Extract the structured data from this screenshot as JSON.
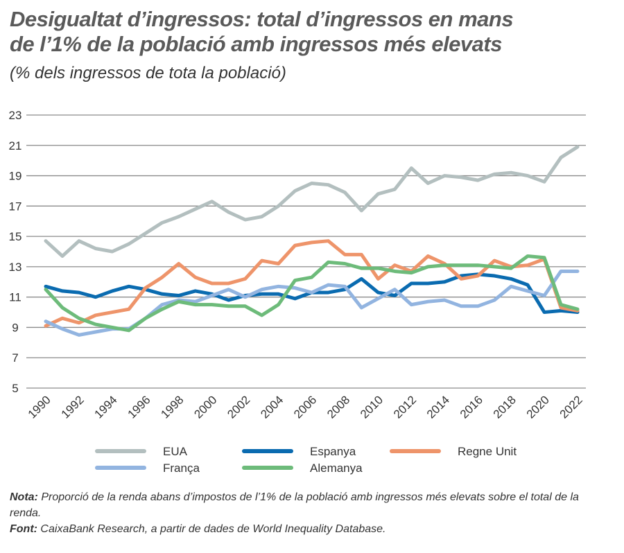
{
  "title_line1": "Desigualtat d’ingressos: total d’ingressos en mans",
  "title_line2": "de l’1% de la població amb ingressos més elevats",
  "subtitle": "(% dels ingressos de tota la població)",
  "chart_data": {
    "type": "line",
    "x": [
      1990,
      1991,
      1992,
      1993,
      1994,
      1995,
      1996,
      1997,
      1998,
      1999,
      2000,
      2001,
      2002,
      2003,
      2004,
      2005,
      2006,
      2007,
      2008,
      2009,
      2010,
      2011,
      2012,
      2013,
      2014,
      2015,
      2016,
      2017,
      2018,
      2019,
      2020,
      2021,
      2022
    ],
    "xticks": [
      "1990",
      "1992",
      "1994",
      "1996",
      "1998",
      "2000",
      "2002",
      "2004",
      "2006",
      "2008",
      "2010",
      "2012",
      "2014",
      "2016",
      "2018",
      "2020",
      "2022"
    ],
    "yticks": [
      "5",
      "7",
      "9",
      "11",
      "13",
      "15",
      "17",
      "19",
      "21",
      "23"
    ],
    "ylim": [
      5,
      23
    ],
    "grid": true,
    "legend_position": "bottom",
    "series": [
      {
        "name": "EUA",
        "color": "#b3bfbf",
        "values": [
          14.7,
          13.7,
          14.7,
          14.2,
          14.0,
          14.5,
          15.2,
          15.9,
          16.3,
          16.8,
          17.3,
          16.6,
          16.1,
          16.3,
          17.0,
          18.0,
          18.5,
          18.4,
          17.9,
          16.7,
          17.8,
          18.1,
          19.5,
          18.5,
          19.0,
          18.9,
          18.7,
          19.1,
          19.2,
          19.0,
          18.6,
          20.2,
          20.9
        ]
      },
      {
        "name": "Espanya",
        "color": "#0a6bb0",
        "values": [
          11.7,
          11.4,
          11.3,
          11.0,
          11.4,
          11.7,
          11.5,
          11.2,
          11.1,
          11.4,
          11.2,
          10.8,
          11.1,
          11.2,
          11.2,
          10.9,
          11.3,
          11.3,
          11.5,
          12.2,
          11.3,
          11.1,
          11.9,
          11.9,
          12.0,
          12.4,
          12.5,
          12.4,
          12.2,
          11.8,
          10.0,
          10.1,
          10.0
        ]
      },
      {
        "name": "Regne Unit",
        "color": "#ee946a",
        "values": [
          9.1,
          9.6,
          9.3,
          9.8,
          10.0,
          10.2,
          11.6,
          12.3,
          13.2,
          12.3,
          11.9,
          11.9,
          12.2,
          13.4,
          13.2,
          14.4,
          14.6,
          14.7,
          13.8,
          13.8,
          12.2,
          13.1,
          12.7,
          13.7,
          13.2,
          12.2,
          12.4,
          13.4,
          13.0,
          13.1,
          13.5,
          10.3,
          10.1
        ]
      },
      {
        "name": "França",
        "color": "#92b4e0",
        "values": [
          9.4,
          8.9,
          8.5,
          8.7,
          8.9,
          8.9,
          9.6,
          10.5,
          10.8,
          10.7,
          11.1,
          11.5,
          11.0,
          11.5,
          11.7,
          11.6,
          11.3,
          11.8,
          11.7,
          10.3,
          10.9,
          11.5,
          10.5,
          10.7,
          10.8,
          10.4,
          10.4,
          10.8,
          11.7,
          11.4,
          11.1,
          12.7,
          12.7
        ]
      },
      {
        "name": "Alemanya",
        "color": "#6dbb7a",
        "values": [
          11.5,
          10.3,
          9.6,
          9.2,
          9.0,
          8.8,
          9.6,
          10.2,
          10.7,
          10.5,
          10.5,
          10.4,
          10.4,
          9.8,
          10.5,
          12.1,
          12.3,
          13.3,
          13.2,
          12.9,
          12.9,
          12.7,
          12.6,
          13.0,
          13.1,
          13.1,
          13.1,
          13.0,
          12.9,
          13.7,
          13.6,
          10.5,
          10.2
        ]
      }
    ]
  },
  "notes": {
    "nota_label": "Nota:",
    "nota_text": " Proporció de la renda abans d’impostos de l’1% de la població amb ingressos més elevats sobre el total de la renda.",
    "font_label": "Font:",
    "font_text": " CaixaBank Research, a partir de dades de World Inequality Database."
  }
}
